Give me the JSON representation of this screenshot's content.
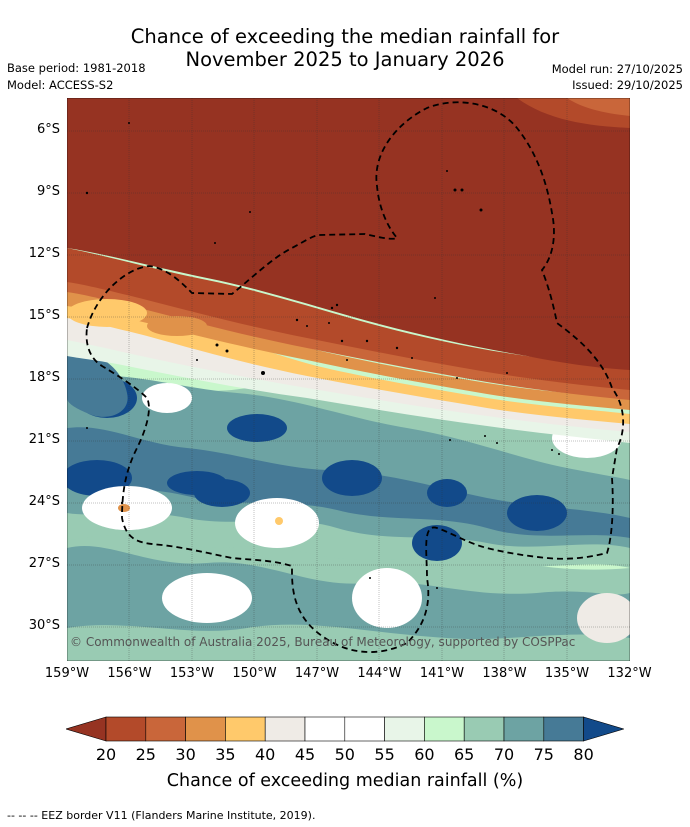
{
  "title_line1": "Chance of exceeding the median rainfall for",
  "title_line2": "November 2025 to January 2026",
  "base_period": "Base period: 1981-2018",
  "model": "Model: ACCESS-S2",
  "model_run": "Model run: 27/10/2025",
  "issued": "Issued: 29/10/2025",
  "lat_labels": [
    "6°S",
    "9°S",
    "12°S",
    "15°S",
    "18°S",
    "21°S",
    "24°S",
    "27°S",
    "30°S"
  ],
  "lon_labels": [
    "159°W",
    "156°W",
    "153°W",
    "150°W",
    "147°W",
    "144°W",
    "141°W",
    "138°W",
    "135°W",
    "132°W"
  ],
  "copyright": "© Commonwealth of Australia 2025, Bureau of Meteorology, supported by COSPPac",
  "colorbar": {
    "ticks": [
      "20",
      "25",
      "30",
      "35",
      "40",
      "45",
      "50",
      "55",
      "60",
      "65",
      "70",
      "75",
      "80"
    ],
    "title": "Chance of exceeding median rainfall (%)",
    "colors": [
      "#963322",
      "#b34a2a",
      "#c9663a",
      "#e0924a",
      "#ffc96b",
      "#efebe6",
      "#ffffff",
      "#ffffff",
      "#e8f5e8",
      "#c9f7cc",
      "#99cbb3",
      "#6da3a3",
      "#467a96",
      "#124a8a"
    ]
  },
  "legend_text": "--  --  -- EEZ border V11 (Flanders Marine Institute, 2019)."
}
